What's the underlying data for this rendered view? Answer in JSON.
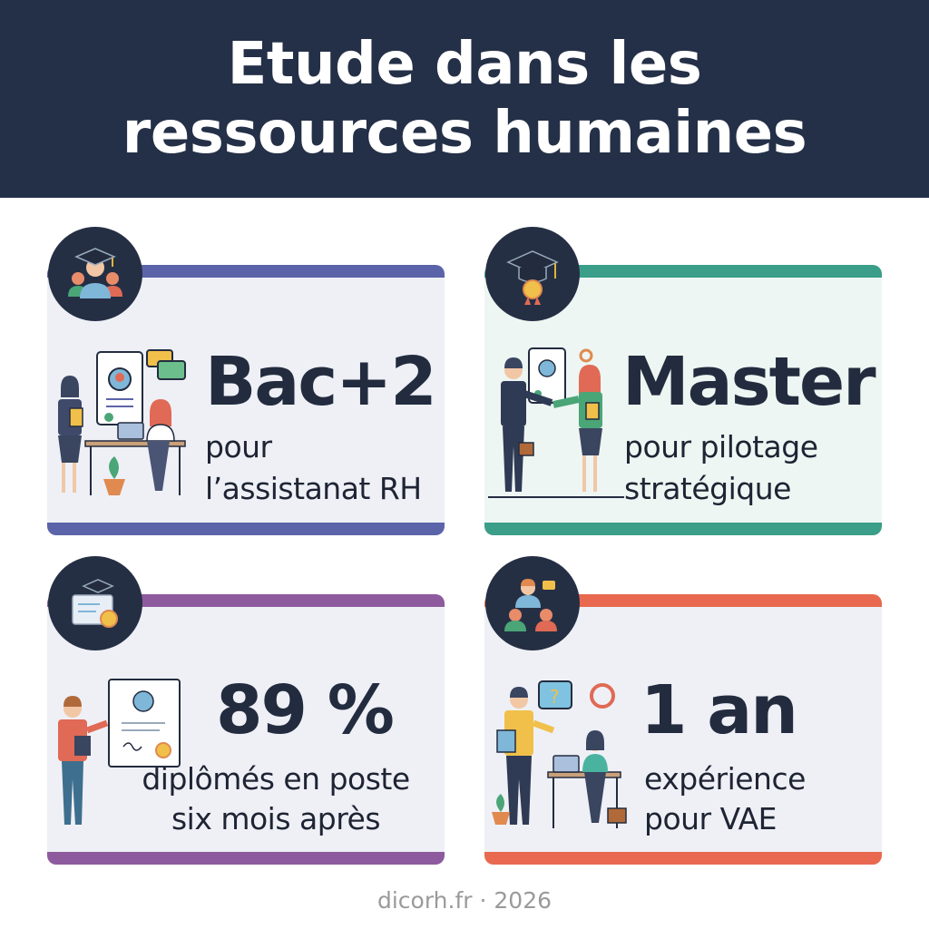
{
  "header": {
    "title_line1": "Etude dans les",
    "title_line2": "ressources humaines"
  },
  "colors": {
    "header": "#243047",
    "blue": "#5b64a8",
    "teal": "#3a9e88",
    "purple": "#8e5a9e",
    "orange": "#e8694f"
  },
  "cards": [
    {
      "headline": "Bac+2",
      "line1": "pour",
      "line2": "l’assistanat RH",
      "icon": "graduate-group-icon",
      "illustration": "hr-assistant-office-illustration"
    },
    {
      "headline": "Master",
      "line1": "pour pilotage",
      "line2": "stratégique",
      "icon": "graduation-cap-award-icon",
      "illustration": "handshake-illustration"
    },
    {
      "headline": "89 %",
      "line1": "diplômés en poste",
      "line2": "six mois après",
      "icon": "diploma-certificate-icon",
      "illustration": "diploma-person-illustration"
    },
    {
      "headline": "1 an",
      "line1": "expérience",
      "line2": "pour VAE",
      "icon": "team-meeting-icon",
      "illustration": "mentoring-desk-illustration"
    }
  ],
  "footer": {
    "text": "dicorh.fr · 2026"
  }
}
